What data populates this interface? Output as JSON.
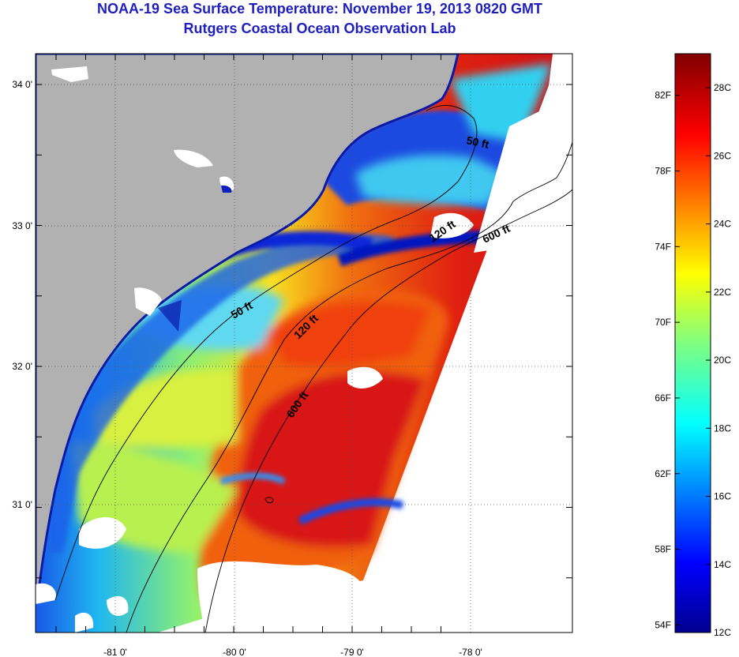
{
  "header": {
    "title": "NOAA-19 Sea Surface Temperature:  November 19, 2013 0820 GMT",
    "subtitle": "Rutgers Coastal Ocean Observation Lab"
  },
  "map": {
    "lat_ticks": [
      "34 0'",
      "33 0'",
      "32 0'",
      "31 0'"
    ],
    "lon_ticks": [
      "-81 0'",
      "-80 0'",
      "-79 0'",
      "-78 0'"
    ],
    "isobaths": [
      "50 ft",
      "120 ft",
      "600 ft"
    ],
    "isobath_labels": [
      {
        "text": "50 ft",
        "group": "north"
      },
      {
        "text": "120 ft",
        "group": "north"
      },
      {
        "text": "600 ft",
        "group": "north"
      },
      {
        "text": "50 ft",
        "group": "south"
      },
      {
        "text": "120 ft",
        "group": "south"
      },
      {
        "text": "600 ft",
        "group": "south"
      }
    ],
    "colors": {
      "land": "#b1b1b1",
      "cloud": "#ffffff",
      "frame": "#000000"
    }
  },
  "colorbar": {
    "fahrenheit_labels": [
      "82F",
      "78F",
      "74F",
      "70F",
      "66F",
      "62F",
      "58F",
      "54F"
    ],
    "celsius_labels": [
      "28C",
      "26C",
      "24C",
      "22C",
      "20C",
      "18C",
      "16C",
      "14C",
      "12C"
    ],
    "range_c": [
      12,
      29
    ],
    "colormap": "jet"
  }
}
